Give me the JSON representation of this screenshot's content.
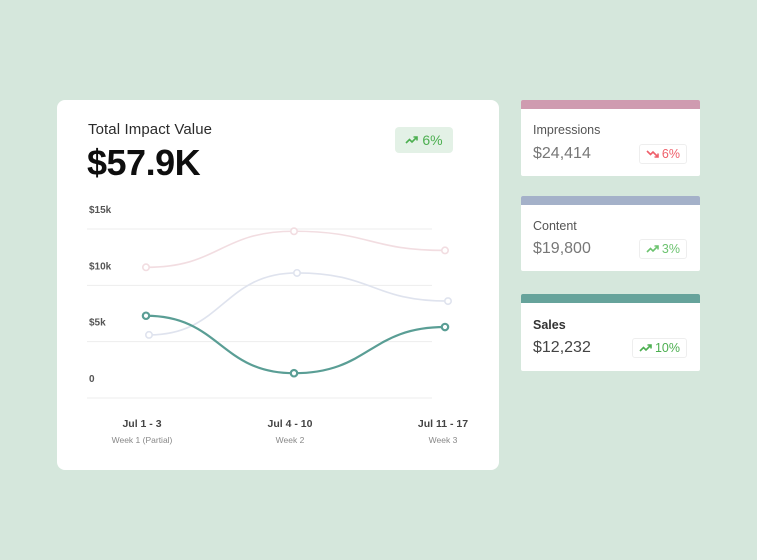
{
  "main_card": {
    "title": "Total Impact Value",
    "value": "$57.9K",
    "change": "6%",
    "change_direction": "up",
    "change_color": "#4caf50"
  },
  "chart_data": {
    "type": "line",
    "title": "Total Impact Value",
    "xlabel": "",
    "ylabel": "",
    "ylim": [
      0,
      15000
    ],
    "y_ticks": [
      "0",
      "$5k",
      "$10k",
      "$15k"
    ],
    "y_tick_values": [
      0,
      5000,
      10000,
      15000
    ],
    "grid": true,
    "categories": [
      "Jul 1 - 3",
      "Jul 4 - 10",
      "Jul 11 - 17"
    ],
    "sub_categories": [
      "Week 1 (Partial)",
      "Week 2",
      "Week 3"
    ],
    "series": [
      {
        "name": "Impressions",
        "color": "#f2dde1",
        "values": [
          11600,
          14800,
          13100
        ]
      },
      {
        "name": "Content",
        "color": "#dfe3ee",
        "values": [
          5600,
          11100,
          8600
        ]
      },
      {
        "name": "Sales",
        "color": "#5a9e95",
        "values": [
          7300,
          2200,
          6300
        ]
      }
    ]
  },
  "stats": [
    {
      "label": "Impressions",
      "value": "$24,414",
      "change": "6%",
      "direction": "down",
      "bar_color": "#cf9bb0",
      "change_color": "#ef5f6a",
      "bold": false
    },
    {
      "label": "Content",
      "value": "$19,800",
      "change": "3%",
      "direction": "up",
      "bar_color": "#a4b1c9",
      "change_color": "#6cc36f",
      "bold": false
    },
    {
      "label": "Sales",
      "value": "$12,232",
      "change": "10%",
      "direction": "up",
      "bar_color": "#66a39b",
      "change_color": "#4caf50",
      "bold": true
    }
  ]
}
